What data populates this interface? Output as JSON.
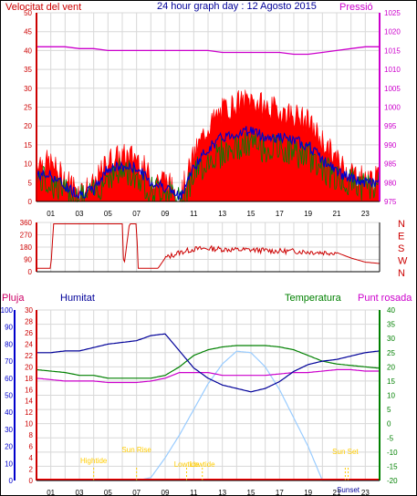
{
  "header": {
    "left": "Velocitat del vent",
    "center": "24 hour graph day : 12 Agosto 2015",
    "right": "Pressió"
  },
  "colors": {
    "wind_speed": "#ff0000",
    "gust": "#ff0000",
    "avg_wind": "#0000cc",
    "wind_dir_line": "#008000",
    "direction": "#cc0000",
    "pressure": "#cc00cc",
    "humidity": "#000099",
    "temperature": "#008000",
    "dewpoint": "#cc00cc",
    "rain": "#ff0000",
    "solar": "#99ccff",
    "axis_left": "#cc0000",
    "axis_right": "#cc00cc",
    "grid": "#d8d8d8",
    "events": "#ffcc00"
  },
  "x_ticks": [
    "01",
    "03",
    "05",
    "07",
    "09",
    "11",
    "13",
    "15",
    "17",
    "19",
    "21",
    "23"
  ],
  "chart_data": [
    {
      "type": "line",
      "title": "24 hour graph day : 12 Agosto 2015",
      "ylabel_left": "Velocitat del vent",
      "ylabel_right": "Pressió",
      "ylim_left": [
        0,
        50
      ],
      "yticks_left": [
        0,
        5,
        10,
        15,
        20,
        25,
        30,
        35,
        40,
        45,
        50
      ],
      "ylim_right": [
        975,
        1025
      ],
      "yticks_right": [
        975,
        980,
        985,
        990,
        995,
        1000,
        1005,
        1010,
        1015,
        1020,
        1025
      ],
      "x_hours": [
        0,
        1,
        2,
        3,
        4,
        5,
        6,
        7,
        8,
        9,
        10,
        11,
        12,
        13,
        14,
        15,
        16,
        17,
        18,
        19,
        20,
        21,
        22,
        23,
        24
      ],
      "series": [
        {
          "name": "gust",
          "axis": "left",
          "values": [
            11,
            10,
            6,
            3,
            4,
            11,
            12,
            12,
            6,
            6,
            1,
            12,
            20,
            24,
            26,
            27,
            25,
            24,
            23,
            21,
            16,
            11,
            8,
            6,
            6
          ]
        },
        {
          "name": "average",
          "axis": "left",
          "values": [
            7,
            7,
            4,
            2,
            3,
            9,
            9,
            9,
            5,
            4,
            1,
            9,
            14,
            17,
            18,
            19,
            17,
            17,
            16,
            15,
            11,
            8,
            6,
            5,
            5
          ]
        },
        {
          "name": "direction-wind",
          "axis": "left",
          "values": [
            6,
            5,
            2,
            1,
            2,
            7,
            8,
            7,
            3,
            3,
            0,
            7,
            11,
            13,
            14,
            15,
            14,
            14,
            13,
            12,
            9,
            6,
            5,
            4,
            4
          ]
        },
        {
          "name": "pressure",
          "axis": "right",
          "values": [
            1016,
            1016,
            1016,
            1015.5,
            1015.5,
            1015,
            1015,
            1015,
            1015,
            1015,
            1015,
            1015,
            1015,
            1014.5,
            1014.5,
            1014.5,
            1014.5,
            1014.5,
            1014,
            1014,
            1014.5,
            1015,
            1015.5,
            1016,
            1016
          ]
        }
      ]
    },
    {
      "type": "line",
      "ylim": [
        0,
        360
      ],
      "yticks": [
        0,
        90,
        180,
        270,
        360
      ],
      "ylabels_right": [
        "N",
        "W",
        "S",
        "E",
        "N"
      ],
      "x_hours": [
        0,
        1,
        1.2,
        3,
        4.5,
        6,
        6.1,
        6.5,
        7,
        7.1,
        8.5,
        9,
        10,
        11,
        12,
        13,
        14,
        15,
        16,
        17,
        18,
        19,
        20,
        21,
        22,
        23,
        24
      ],
      "series": [
        {
          "name": "direction",
          "values": [
            25,
            25,
            350,
            350,
            350,
            350,
            25,
            350,
            350,
            25,
            25,
            100,
            140,
            165,
            170,
            165,
            160,
            160,
            155,
            150,
            150,
            145,
            140,
            140,
            100,
            70,
            60
          ]
        }
      ]
    },
    {
      "type": "line",
      "legend": [
        "Pluja",
        "Humitat",
        "Temperatura",
        "Punt rosada"
      ],
      "ylim_humidity": [
        0,
        100
      ],
      "yticks_humidity": [
        0,
        10,
        20,
        30,
        40,
        50,
        60,
        70,
        80,
        90,
        100
      ],
      "ylim_rain": [
        0,
        30
      ],
      "yticks_rain": [
        0,
        2,
        4,
        6,
        8,
        10,
        12,
        14,
        16,
        18,
        20,
        22,
        24,
        26,
        28,
        30
      ],
      "ylim_temp": [
        -20,
        40
      ],
      "yticks_temp": [
        -20,
        -15,
        -10,
        -5,
        0,
        5,
        10,
        15,
        20,
        25,
        30,
        35,
        40
      ],
      "x_hours": [
        0,
        1,
        2,
        3,
        4,
        5,
        6,
        7,
        8,
        9,
        10,
        11,
        12,
        13,
        14,
        15,
        16,
        17,
        18,
        19,
        20,
        21,
        22,
        23,
        24
      ],
      "series": [
        {
          "name": "Humitat",
          "axis": "humidity",
          "values": [
            75,
            75,
            76,
            76,
            78,
            80,
            81,
            82,
            85,
            86,
            76,
            66,
            60,
            56,
            54,
            52,
            54,
            58,
            64,
            68,
            70,
            71,
            73,
            75,
            76
          ]
        },
        {
          "name": "Temperatura",
          "axis": "temp",
          "values": [
            19,
            18.5,
            18,
            17,
            17,
            16,
            16,
            16,
            16,
            17,
            20,
            24,
            26,
            27,
            27.5,
            27.5,
            27.5,
            27,
            26,
            24,
            22,
            21,
            20.5,
            20,
            19.5
          ]
        },
        {
          "name": "Punt rosada",
          "axis": "temp",
          "values": [
            16,
            15.5,
            15,
            15,
            15,
            14.5,
            14.5,
            14.5,
            15,
            16,
            18,
            18,
            18,
            17,
            17,
            17,
            17,
            17.5,
            18,
            18,
            18.5,
            19,
            19,
            18.5,
            18.5
          ]
        },
        {
          "name": "solar",
          "axis": "temp",
          "values": [
            -20,
            -20,
            -20,
            -20,
            -20,
            -20,
            -20,
            -20,
            -19,
            -12,
            -4,
            5,
            14,
            21,
            25.5,
            25,
            20,
            12,
            2,
            -8,
            -20,
            -20,
            -20,
            -20,
            -20
          ]
        },
        {
          "name": "Pluja",
          "axis": "rain",
          "values": [
            0,
            0,
            0,
            0,
            0,
            0,
            0,
            0,
            0,
            0,
            0,
            0,
            0,
            0,
            0,
            0,
            0,
            0,
            0,
            0,
            0,
            0,
            0,
            0,
            0
          ]
        }
      ],
      "events": [
        {
          "label": "Sun Rise",
          "hour": 7.0
        },
        {
          "label": "Sun Set",
          "hour": 21.6
        },
        {
          "label": "Hightide",
          "hour": 4.0
        },
        {
          "label": "Lowtide",
          "hour": 10.5
        },
        {
          "label": "Lowtide",
          "hour": 11.6
        },
        {
          "label": "Sunset",
          "hour": 21.8
        }
      ]
    }
  ]
}
